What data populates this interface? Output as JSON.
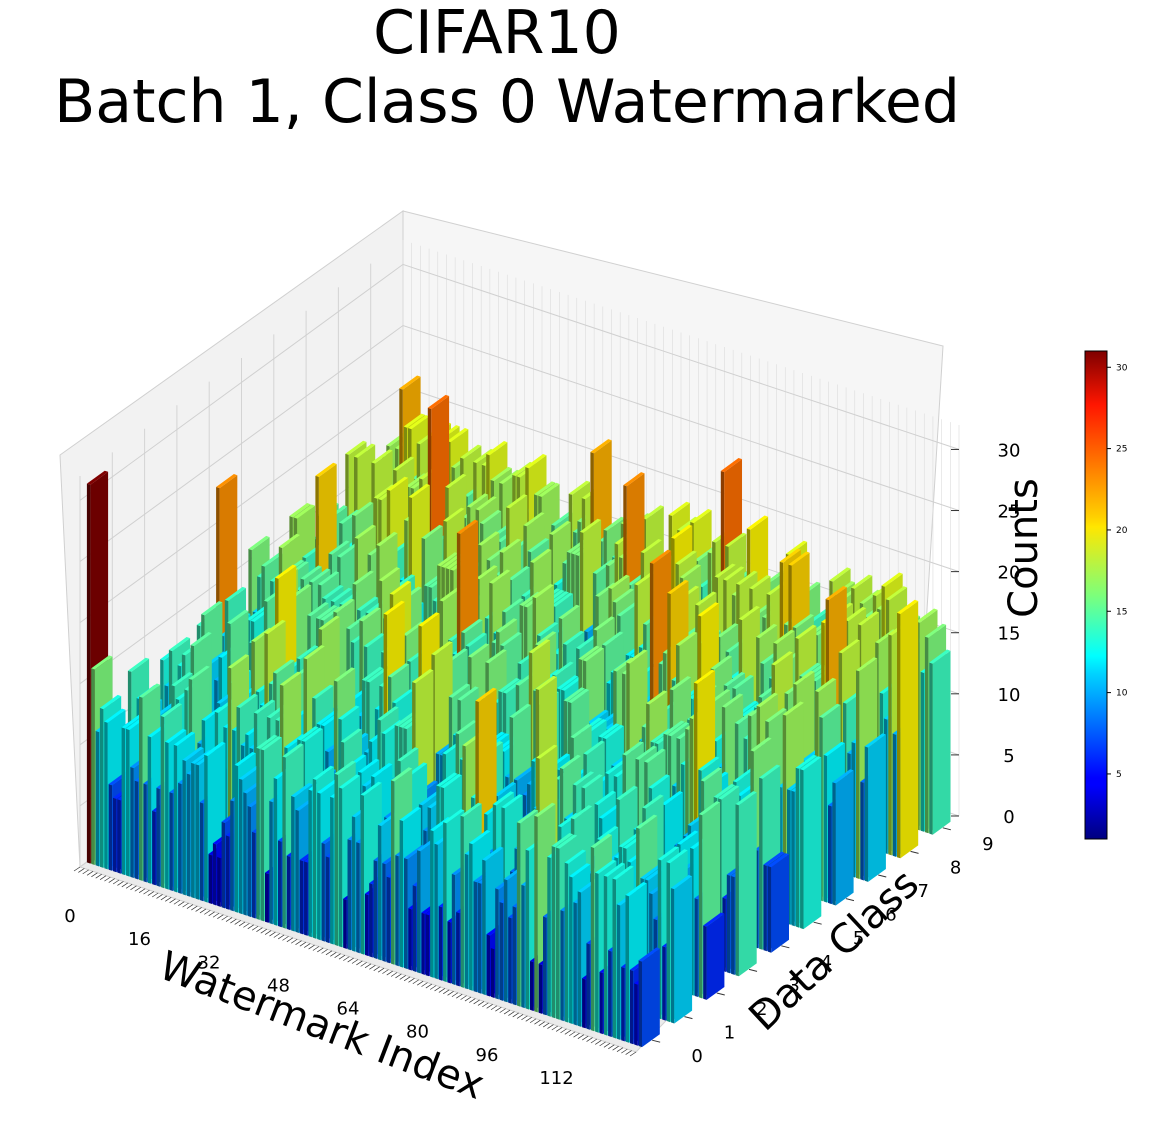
{
  "chart_data": {
    "type": "bar3d",
    "title": "CIFAR10",
    "subtitle": "Batch 1, Class 0 Watermarked",
    "xlabel": "Watermark Index",
    "ylabel": "Data Class",
    "zlabel": "Counts",
    "x_ticks": [
      "0",
      "16",
      "32",
      "48",
      "64",
      "80",
      "96",
      "112"
    ],
    "y_ticks": [
      "0",
      "1",
      "2",
      "3",
      "4",
      "5",
      "6",
      "7",
      "8",
      "9"
    ],
    "z_ticks": [
      "0",
      "5",
      "10",
      "15",
      "20",
      "25",
      "30"
    ],
    "x_range": [
      0,
      128
    ],
    "y_range": [
      0,
      10
    ],
    "zlim": [
      0,
      32
    ],
    "colormap": "jet",
    "colorbar_range": [
      1,
      31
    ],
    "colorbar_ticks": [
      "5",
      "10",
      "15",
      "20",
      "25",
      "30"
    ],
    "grid": true,
    "num_watermark_indices": 128,
    "num_classes": 10,
    "notable_values": [
      {
        "watermark_index": 0,
        "data_class": 0,
        "count": 31
      }
    ],
    "typical_count_range": [
      1,
      24
    ],
    "values_note": "Per-class counts for each of 128 watermark indices; class 0 at index 0 reaches 31, most other bars lie between about 3 and 24."
  }
}
